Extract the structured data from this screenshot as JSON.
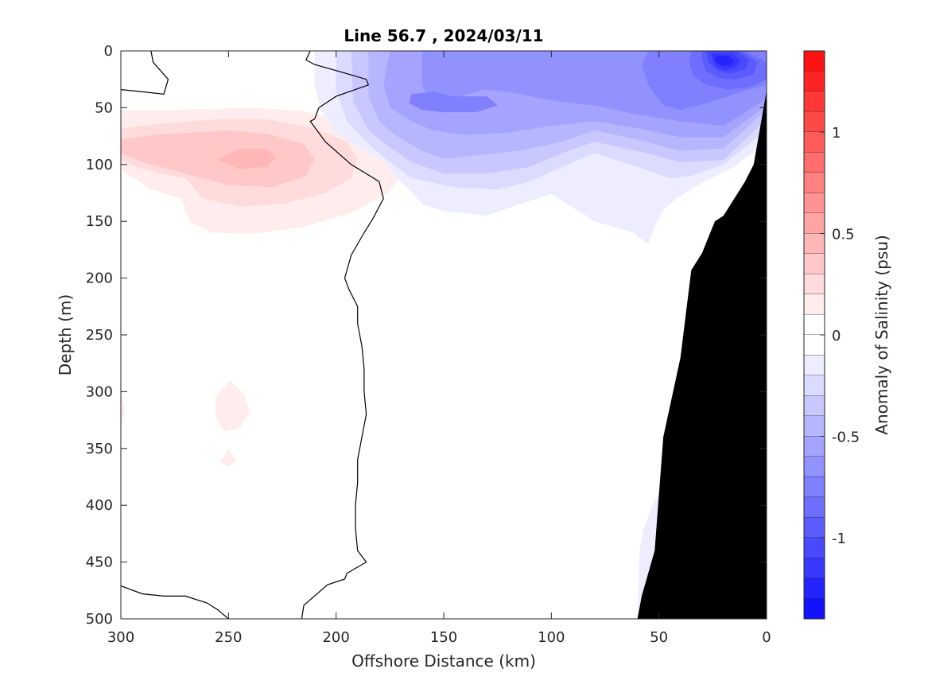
{
  "chart_data": {
    "type": "heatmap",
    "title": "Line 56.7 , 2024/03/11",
    "xlabel": "Offshore Distance (km)",
    "ylabel": "Depth (m)",
    "xlim": [
      300,
      0
    ],
    "ylim": [
      0,
      500
    ],
    "x_ticks": [
      300,
      250,
      200,
      150,
      100,
      50,
      0
    ],
    "y_ticks": [
      0,
      50,
      100,
      150,
      200,
      250,
      300,
      350,
      400,
      450,
      500
    ],
    "colorbar": {
      "label": "Anomaly of Salinity (psu)",
      "range": [
        -1.4,
        1.4
      ],
      "step": 0.1,
      "ticks": [
        1,
        0.5,
        0,
        -0.5,
        -1
      ],
      "tick_labels": [
        "1",
        "0.5",
        "0",
        "-0.5",
        "-1"
      ]
    },
    "positive_regions": [
      {
        "level": 0.1,
        "points": [
          [
            300,
            52
          ],
          [
            275,
            52
          ],
          [
            240,
            50
          ],
          [
            215,
            53
          ],
          [
            195,
            62
          ],
          [
            180,
            75
          ],
          [
            172,
            90
          ],
          [
            170,
            110
          ],
          [
            176,
            125
          ],
          [
            192,
            142
          ],
          [
            215,
            155
          ],
          [
            238,
            161
          ],
          [
            258,
            160
          ],
          [
            268,
            150
          ],
          [
            272,
            130
          ],
          [
            286,
            122
          ],
          [
            292,
            114
          ],
          [
            298,
            108
          ],
          [
            300,
            100
          ]
        ]
      },
      {
        "level": 0.2,
        "points": [
          [
            300,
            68
          ],
          [
            280,
            64
          ],
          [
            255,
            60
          ],
          [
            232,
            60
          ],
          [
            210,
            68
          ],
          [
            195,
            80
          ],
          [
            190,
            95
          ],
          [
            193,
            112
          ],
          [
            205,
            125
          ],
          [
            225,
            135
          ],
          [
            245,
            137
          ],
          [
            262,
            130
          ],
          [
            270,
            112
          ],
          [
            282,
            108
          ],
          [
            293,
            102
          ],
          [
            300,
            96
          ]
        ]
      },
      {
        "level": 0.3,
        "points": [
          [
            300,
            78
          ],
          [
            285,
            74
          ],
          [
            268,
            72
          ],
          [
            250,
            70
          ],
          [
            232,
            73
          ],
          [
            215,
            82
          ],
          [
            210,
            95
          ],
          [
            214,
            110
          ],
          [
            230,
            120
          ],
          [
            250,
            118
          ],
          [
            266,
            110
          ],
          [
            278,
            104
          ],
          [
            290,
            98
          ],
          [
            300,
            90
          ]
        ]
      },
      {
        "level": 0.4,
        "points": [
          [
            245,
            86
          ],
          [
            233,
            86
          ],
          [
            228,
            94
          ],
          [
            232,
            102
          ],
          [
            245,
            104
          ],
          [
            255,
            96
          ]
        ]
      },
      {
        "level": 0.1,
        "points": [
          [
            249,
            290
          ],
          [
            243,
            302
          ],
          [
            240,
            318
          ],
          [
            245,
            332
          ],
          [
            252,
            335
          ],
          [
            256,
            322
          ],
          [
            256,
            304
          ]
        ]
      },
      {
        "level": 0.1,
        "points": [
          [
            250,
            351
          ],
          [
            246,
            360
          ],
          [
            250,
            366
          ],
          [
            254,
            362
          ]
        ]
      },
      {
        "level": 0.1,
        "points": [
          [
            300,
            302
          ],
          [
            298,
            316
          ],
          [
            300,
            330
          ]
        ]
      }
    ],
    "negative_regions": [
      {
        "level": -0.1,
        "points": [
          [
            210,
            0
          ],
          [
            0,
            0
          ],
          [
            0,
            80
          ],
          [
            15,
            102
          ],
          [
            30,
            116
          ],
          [
            42,
            130
          ],
          [
            48,
            140
          ],
          [
            52,
            155
          ],
          [
            55,
            170
          ],
          [
            62,
            160
          ],
          [
            80,
            150
          ],
          [
            90,
            138
          ],
          [
            100,
            126
          ],
          [
            115,
            135
          ],
          [
            130,
            145
          ],
          [
            150,
            141
          ],
          [
            160,
            135
          ],
          [
            165,
            124
          ],
          [
            172,
            112
          ],
          [
            178,
            97
          ],
          [
            190,
            85
          ],
          [
            200,
            72
          ],
          [
            207,
            52
          ],
          [
            210,
            30
          ]
        ]
      },
      {
        "level": -0.2,
        "points": [
          [
            200,
            0
          ],
          [
            0,
            0
          ],
          [
            0,
            70
          ],
          [
            20,
            100
          ],
          [
            35,
            110
          ],
          [
            45,
            112
          ],
          [
            60,
            102
          ],
          [
            80,
            90
          ],
          [
            95,
            102
          ],
          [
            110,
            115
          ],
          [
            125,
            122
          ],
          [
            145,
            120
          ],
          [
            165,
            112
          ],
          [
            175,
            98
          ],
          [
            185,
            82
          ],
          [
            195,
            62
          ],
          [
            200,
            35
          ]
        ]
      },
      {
        "level": -0.3,
        "points": [
          [
            193,
            0
          ],
          [
            0,
            0
          ],
          [
            0,
            60
          ],
          [
            20,
            96
          ],
          [
            40,
            98
          ],
          [
            60,
            88
          ],
          [
            80,
            80
          ],
          [
            95,
            90
          ],
          [
            110,
            102
          ],
          [
            130,
            108
          ],
          [
            150,
            108
          ],
          [
            165,
            98
          ],
          [
            175,
            85
          ],
          [
            185,
            70
          ],
          [
            192,
            45
          ]
        ]
      },
      {
        "level": -0.4,
        "points": [
          [
            185,
            0
          ],
          [
            0,
            0
          ],
          [
            0,
            52
          ],
          [
            20,
            86
          ],
          [
            40,
            88
          ],
          [
            60,
            78
          ],
          [
            80,
            70
          ],
          [
            95,
            80
          ],
          [
            115,
            88
          ],
          [
            135,
            92
          ],
          [
            150,
            95
          ],
          [
            160,
            88
          ],
          [
            172,
            75
          ],
          [
            180,
            62
          ],
          [
            185,
            40
          ]
        ]
      },
      {
        "level": -0.5,
        "points": [
          [
            175,
            0
          ],
          [
            0,
            0
          ],
          [
            0,
            48
          ],
          [
            20,
            76
          ],
          [
            40,
            76
          ],
          [
            60,
            68
          ],
          [
            80,
            62
          ],
          [
            100,
            66
          ],
          [
            120,
            72
          ],
          [
            140,
            74
          ],
          [
            155,
            70
          ],
          [
            165,
            62
          ],
          [
            175,
            50
          ],
          [
            178,
            30
          ]
        ]
      },
      {
        "level": -0.6,
        "points": [
          [
            160,
            0
          ],
          [
            0,
            0
          ],
          [
            0,
            42
          ],
          [
            20,
            66
          ],
          [
            40,
            62
          ],
          [
            60,
            56
          ],
          [
            80,
            48
          ],
          [
            95,
            45
          ],
          [
            110,
            40
          ],
          [
            120,
            36
          ],
          [
            132,
            34
          ],
          [
            145,
            42
          ],
          [
            155,
            50
          ],
          [
            160,
            30
          ]
        ]
      },
      {
        "level": -0.7,
        "points": [
          [
            30,
            0
          ],
          [
            55,
            0
          ],
          [
            58,
            12
          ],
          [
            55,
            30
          ],
          [
            48,
            48
          ],
          [
            40,
            52
          ],
          [
            28,
            46
          ],
          [
            18,
            40
          ],
          [
            10,
            35
          ],
          [
            0,
            30
          ],
          [
            0,
            0
          ]
        ]
      },
      {
        "level": -0.7,
        "points": [
          [
            165,
            38
          ],
          [
            155,
            36
          ],
          [
            145,
            40
          ],
          [
            130,
            40
          ],
          [
            125,
            48
          ],
          [
            135,
            54
          ],
          [
            150,
            54
          ],
          [
            160,
            52
          ],
          [
            166,
            46
          ]
        ]
      },
      {
        "level": -0.8,
        "points": [
          [
            35,
            0
          ],
          [
            10,
            0
          ],
          [
            0,
            10
          ],
          [
            0,
            25
          ],
          [
            8,
            32
          ],
          [
            18,
            34
          ],
          [
            28,
            30
          ],
          [
            34,
            22
          ],
          [
            36,
            10
          ]
        ]
      },
      {
        "level": -0.9,
        "points": [
          [
            30,
            0
          ],
          [
            12,
            0
          ],
          [
            4,
            10
          ],
          [
            6,
            20
          ],
          [
            14,
            25
          ],
          [
            22,
            24
          ],
          [
            28,
            18
          ],
          [
            30,
            8
          ]
        ]
      },
      {
        "level": -1.0,
        "points": [
          [
            28,
            0
          ],
          [
            14,
            0
          ],
          [
            8,
            8
          ],
          [
            10,
            16
          ],
          [
            17,
            20
          ],
          [
            23,
            17
          ],
          [
            27,
            10
          ]
        ]
      },
      {
        "level": -1.1,
        "points": [
          [
            26,
            2
          ],
          [
            16,
            2
          ],
          [
            12,
            8
          ],
          [
            14,
            14
          ],
          [
            19,
            17
          ],
          [
            24,
            13
          ]
        ]
      },
      {
        "level": -1.2,
        "points": [
          [
            24,
            4
          ],
          [
            18,
            4
          ],
          [
            15,
            9
          ],
          [
            17,
            13
          ],
          [
            21,
            13
          ],
          [
            24,
            9
          ]
        ]
      },
      {
        "level": -0.1,
        "points": [
          [
            60,
            500
          ],
          [
            59,
            440
          ],
          [
            57,
            420
          ],
          [
            53,
            400
          ],
          [
            47,
            380
          ],
          [
            40,
            370
          ],
          [
            36,
            378
          ],
          [
            33,
            400
          ],
          [
            33,
            500
          ]
        ]
      }
    ],
    "zero_contours": [
      [
        [
          300,
          34
        ],
        [
          290,
          36
        ],
        [
          280,
          38
        ],
        [
          278,
          25
        ],
        [
          285,
          10
        ],
        [
          286,
          0
        ]
      ],
      [
        [
          212,
          0
        ],
        [
          214,
          8
        ],
        [
          210,
          12
        ],
        [
          195,
          20
        ],
        [
          186,
          25
        ],
        [
          185,
          30
        ],
        [
          200,
          40
        ],
        [
          208,
          50
        ],
        [
          210,
          60
        ],
        [
          212,
          62
        ],
        [
          205,
          80
        ],
        [
          193,
          100
        ],
        [
          180,
          115
        ],
        [
          178,
          130
        ],
        [
          183,
          148
        ],
        [
          187,
          160
        ],
        [
          193,
          180
        ],
        [
          196,
          200
        ],
        [
          194,
          210
        ],
        [
          190,
          225
        ],
        [
          190,
          240
        ],
        [
          188,
          260
        ],
        [
          187,
          280
        ],
        [
          187,
          300
        ],
        [
          186,
          320
        ],
        [
          188,
          340
        ],
        [
          190,
          360
        ],
        [
          190,
          380
        ],
        [
          191,
          400
        ],
        [
          191,
          420
        ],
        [
          190,
          440
        ],
        [
          186,
          450
        ],
        [
          195,
          460
        ],
        [
          196,
          465
        ],
        [
          204,
          470
        ],
        [
          215,
          488
        ],
        [
          216,
          500
        ]
      ],
      [
        [
          300,
          471
        ],
        [
          290,
          478
        ],
        [
          280,
          480
        ],
        [
          270,
          480
        ],
        [
          260,
          486
        ],
        [
          255,
          492
        ],
        [
          250,
          500
        ]
      ]
    ],
    "land_profile": [
      [
        0,
        35
      ],
      [
        6,
        100
      ],
      [
        10,
        115
      ],
      [
        20,
        145
      ],
      [
        24,
        150
      ],
      [
        30,
        178
      ],
      [
        35,
        193
      ],
      [
        40,
        270
      ],
      [
        48,
        340
      ],
      [
        52,
        440
      ],
      [
        58,
        480
      ],
      [
        60,
        500
      ]
    ]
  }
}
